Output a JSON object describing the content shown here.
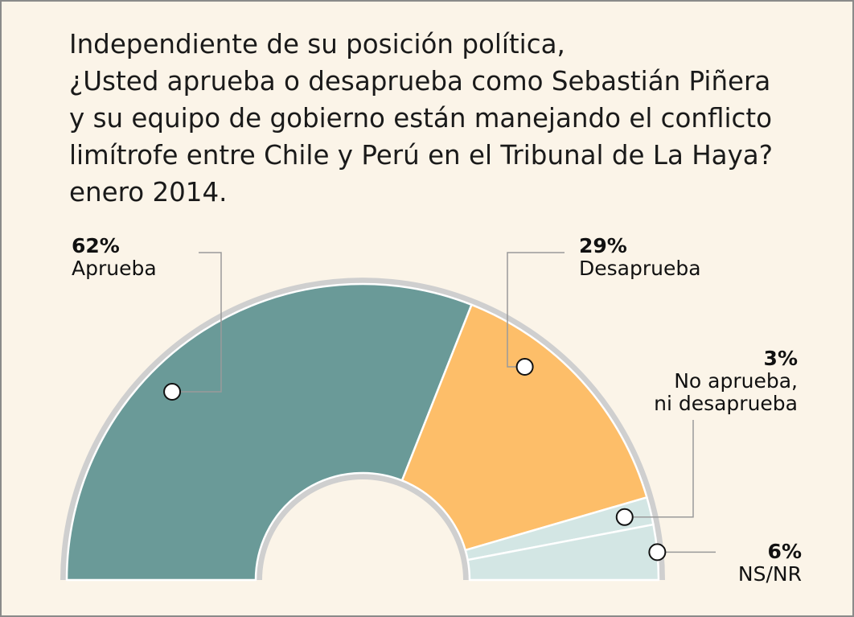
{
  "title_lines": [
    "Independiente de su posición política,",
    "¿Usted aprueba o desaprueba como Sebastián Piñera",
    "y su equipo de gobierno están manejando el conflicto",
    "limítrofe entre Chile y Perú en el Tribunal de La Haya?",
    "enero 2014."
  ],
  "chart_data": {
    "type": "pie",
    "variant": "semicircle-donut",
    "title": "Independiente de su posición política, ¿Usted aprueba o desaprueba como Sebastián Piñera y su equipo de gobierno están manejando el conflicto limítrofe entre Chile y Perú en el Tribunal de La Haya? enero 2014.",
    "categories": [
      "Aprueba",
      "Desaprueba",
      "No aprueba, ni desaprueba",
      "NS/NR"
    ],
    "values": [
      62,
      29,
      3,
      6
    ],
    "value_labels": [
      "62%",
      "29%",
      "3%",
      "6%"
    ],
    "label_lines": [
      [
        "Aprueba"
      ],
      [
        "Desaprueba"
      ],
      [
        "No aprueba,",
        "ni desaprueba"
      ],
      [
        "NS/NR"
      ]
    ],
    "colors": [
      "#6a9a98",
      "#fdbe69",
      "#d3e6e4",
      "#d3e6e4"
    ],
    "rim_color": "#cfcfcf",
    "background": "#fbf4e8",
    "legend": "none"
  }
}
